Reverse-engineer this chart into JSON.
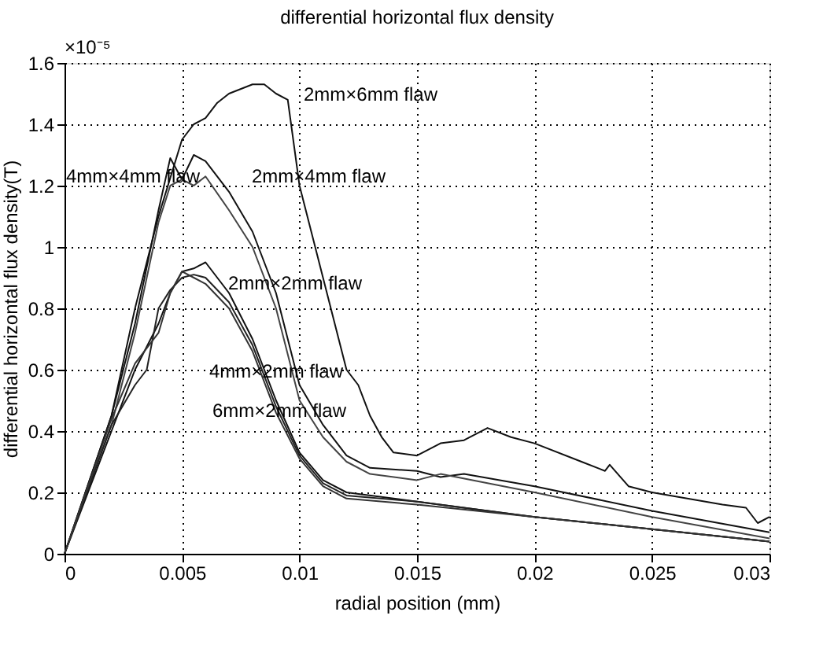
{
  "chart_data": {
    "type": "line",
    "title": "differential horizontal flux density",
    "xlabel": "radial position (mm)",
    "ylabel": "differential horizontal flux density(T)",
    "xlim": [
      0,
      0.03
    ],
    "xticks": [
      0,
      0.005,
      0.01,
      0.015,
      0.02,
      0.025,
      0.03
    ],
    "ylim": [
      0,
      1.6
    ],
    "yticks": [
      0,
      0.2,
      0.4,
      0.6,
      0.8,
      1,
      1.2,
      1.4,
      1.6
    ],
    "grid": true,
    "line_style": "solid",
    "marker": "none",
    "series": [
      {
        "color": "#111111",
        "x": [
          0,
          0.002,
          0.003,
          0.004,
          0.005,
          0.0055,
          0.006,
          0.0065,
          0.007,
          0.008,
          0.0085,
          0.009,
          0.0095,
          0.01,
          0.011,
          0.012,
          0.0125,
          0.013,
          0.0135,
          0.014,
          0.015,
          0.016,
          0.017,
          0.018,
          0.019,
          0.02,
          0.022,
          0.023,
          0.0232,
          0.024,
          0.025,
          0.028,
          0.029,
          0.0295,
          0.03
        ],
        "values": [
          0,
          0.45,
          0.8,
          1.1,
          1.35,
          1.4,
          1.42,
          1.47,
          1.5,
          1.53,
          1.53,
          1.5,
          1.48,
          1.2,
          0.9,
          0.6,
          0.55,
          0.45,
          0.38,
          0.33,
          0.32,
          0.36,
          0.37,
          0.41,
          0.38,
          0.36,
          0.3,
          0.27,
          0.29,
          0.22,
          0.2,
          0.16,
          0.15,
          0.1,
          0.12
        ]
      },
      {
        "color": "#111111",
        "x": [
          0,
          0.002,
          0.003,
          0.004,
          0.0045,
          0.005,
          0.0055,
          0.006,
          0.007,
          0.008,
          0.009,
          0.01,
          0.011,
          0.012,
          0.013,
          0.015,
          0.016,
          0.017,
          0.02,
          0.025,
          0.03
        ],
        "values": [
          0,
          0.45,
          0.75,
          1.12,
          1.29,
          1.22,
          1.3,
          1.28,
          1.18,
          1.05,
          0.85,
          0.55,
          0.42,
          0.32,
          0.28,
          0.27,
          0.25,
          0.26,
          0.22,
          0.14,
          0.07
        ]
      },
      {
        "color": "#444444",
        "x": [
          0,
          0.002,
          0.003,
          0.004,
          0.0045,
          0.005,
          0.0055,
          0.006,
          0.007,
          0.008,
          0.009,
          0.01,
          0.011,
          0.012,
          0.013,
          0.015,
          0.016,
          0.02,
          0.025,
          0.03
        ],
        "values": [
          0,
          0.42,
          0.72,
          1.08,
          1.2,
          1.22,
          1.2,
          1.23,
          1.12,
          1.0,
          0.8,
          0.5,
          0.38,
          0.3,
          0.26,
          0.24,
          0.26,
          0.2,
          0.12,
          0.05
        ]
      },
      {
        "color": "#111111",
        "x": [
          0,
          0.002,
          0.003,
          0.004,
          0.0045,
          0.005,
          0.0055,
          0.006,
          0.007,
          0.008,
          0.009,
          0.01,
          0.011,
          0.012,
          0.015,
          0.02,
          0.025,
          0.03
        ],
        "values": [
          0,
          0.4,
          0.6,
          0.75,
          0.85,
          0.92,
          0.93,
          0.95,
          0.85,
          0.7,
          0.5,
          0.33,
          0.24,
          0.2,
          0.17,
          0.12,
          0.08,
          0.04
        ]
      },
      {
        "color": "#222222",
        "x": [
          0,
          0.002,
          0.003,
          0.0035,
          0.004,
          0.0045,
          0.005,
          0.0055,
          0.006,
          0.007,
          0.008,
          0.009,
          0.01,
          0.011,
          0.012,
          0.015,
          0.02,
          0.025,
          0.03
        ],
        "values": [
          0,
          0.42,
          0.55,
          0.6,
          0.8,
          0.86,
          0.9,
          0.91,
          0.9,
          0.82,
          0.68,
          0.48,
          0.32,
          0.23,
          0.19,
          0.17,
          0.12,
          0.08,
          0.04
        ]
      },
      {
        "color": "#333333",
        "x": [
          0,
          0.002,
          0.003,
          0.004,
          0.0045,
          0.005,
          0.0055,
          0.006,
          0.007,
          0.008,
          0.009,
          0.01,
          0.011,
          0.012,
          0.015,
          0.02,
          0.025,
          0.03
        ],
        "values": [
          0,
          0.44,
          0.62,
          0.72,
          0.85,
          0.92,
          0.9,
          0.88,
          0.8,
          0.66,
          0.46,
          0.31,
          0.22,
          0.18,
          0.16,
          0.12,
          0.08,
          0.04
        ]
      }
    ],
    "annotations": [
      "×10⁻⁵",
      "2mm×6mm flaw",
      "4mm×4mm flaw",
      "2mm×4mm flaw",
      "2mm×2mm flaw",
      "4mm×2mm flaw",
      "6mm×2mm flaw"
    ]
  }
}
